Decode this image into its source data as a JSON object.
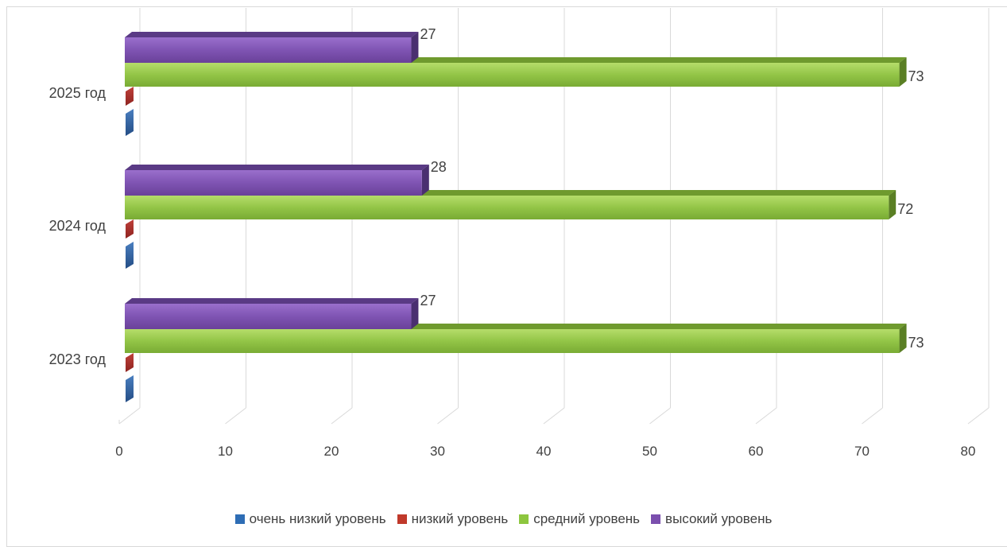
{
  "chart_data": {
    "type": "bar",
    "orientation": "horizontal",
    "style": "3d",
    "categories": [
      "2023 год",
      "2024 год",
      "2025 год"
    ],
    "series": [
      {
        "name": "очень низкий уровень",
        "color": "#2e5f9e",
        "values": [
          0,
          0,
          0
        ]
      },
      {
        "name": "низкий уровень",
        "color": "#a52a2a",
        "values": [
          0,
          0,
          0
        ]
      },
      {
        "name": "средний уровень",
        "color": "#8dc63f",
        "values": [
          73,
          72,
          73
        ]
      },
      {
        "name": "высокий уровень",
        "color": "#7b4fae",
        "values": [
          27,
          28,
          27
        ]
      }
    ],
    "x_ticks": [
      "0",
      "10",
      "20",
      "30",
      "40",
      "50",
      "60",
      "70",
      "80"
    ],
    "xlim": [
      0,
      80
    ],
    "grid": true,
    "legend_position": "bottom"
  }
}
